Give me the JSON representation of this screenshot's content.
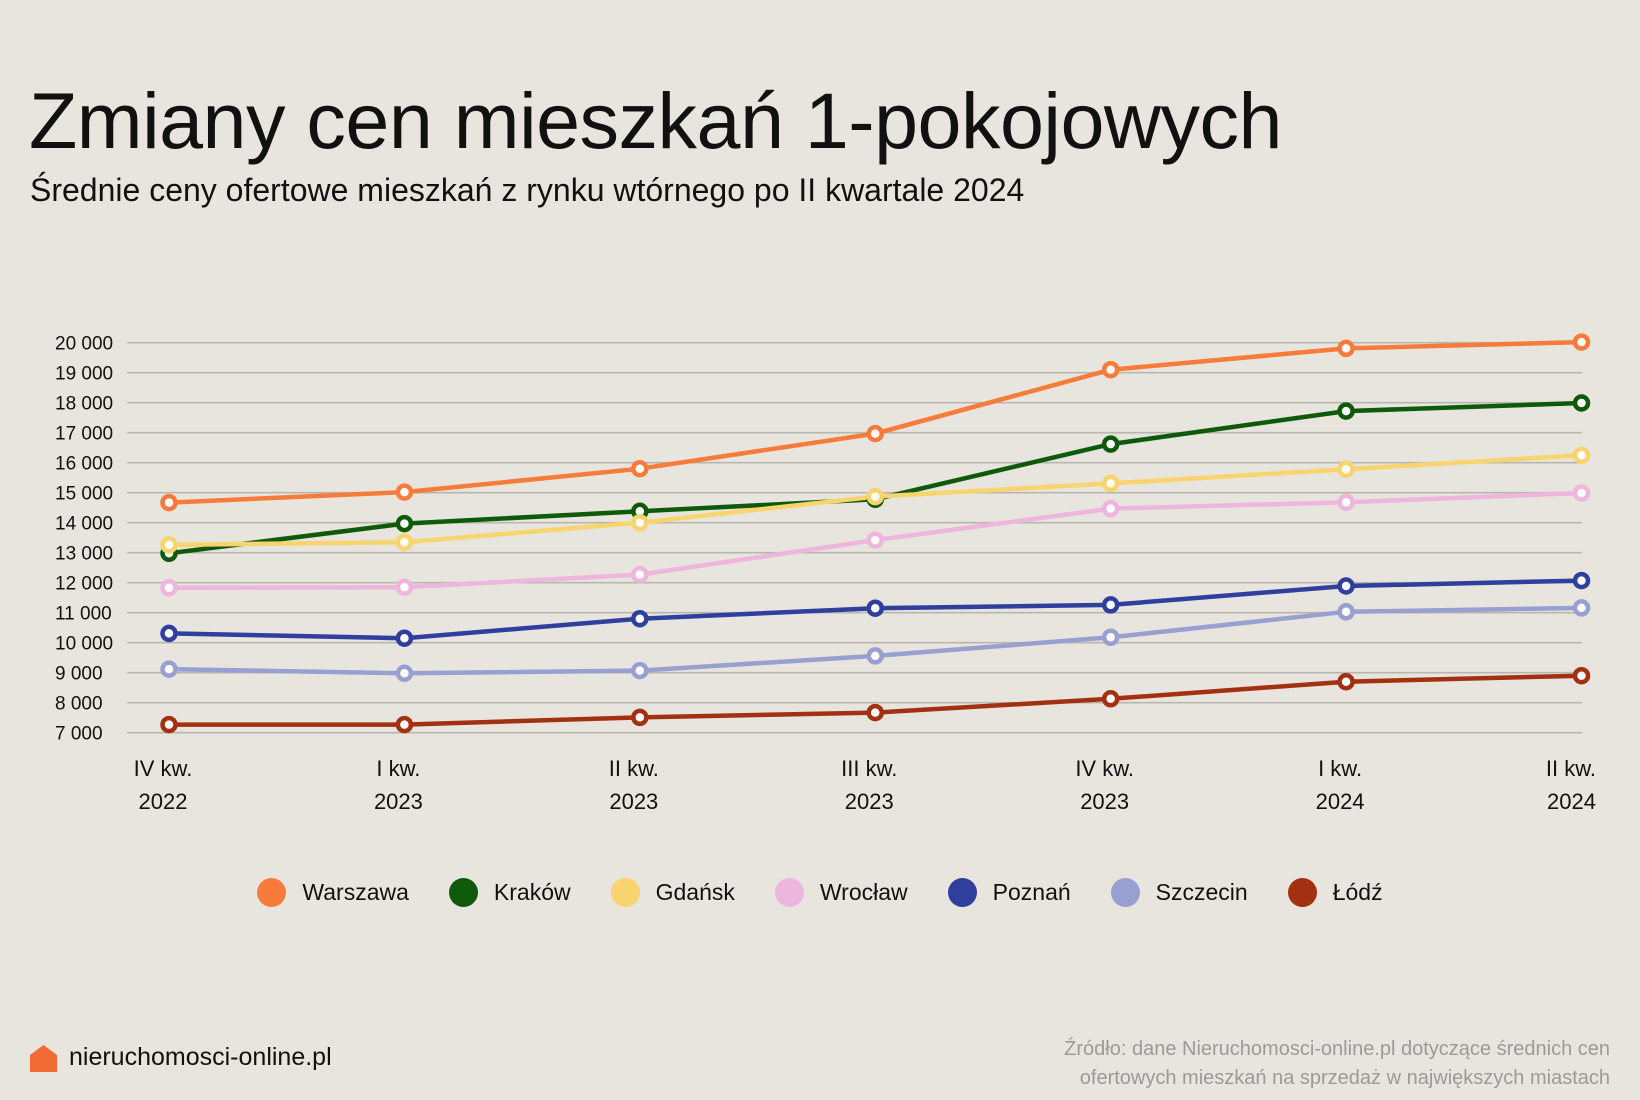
{
  "header": {
    "title": "Zmiany cen mieszkań 1-pokojowych",
    "subtitle": "Średnie ceny ofertowe mieszkań z rynku wtórnego po II kwartale 2024"
  },
  "chart_data": {
    "type": "line",
    "title": "Zmiany cen mieszkań 1-pokojowych",
    "subtitle": "Średnie ceny ofertowe mieszkań z rynku wtórnego po II kwartale 2024",
    "xlabel": "",
    "ylabel": "",
    "categories": [
      [
        "IV kw.",
        "2022"
      ],
      [
        "I kw.",
        "2023"
      ],
      [
        "II kw.",
        "2023"
      ],
      [
        "III kw.",
        "2023"
      ],
      [
        "IV kw.",
        "2023"
      ],
      [
        "I kw.",
        "2024"
      ],
      [
        "II kw.",
        "2024"
      ]
    ],
    "ylim": [
      7000,
      20000
    ],
    "yticks": [
      20000,
      19000,
      18000,
      17000,
      16000,
      15000,
      14000,
      13000,
      12000,
      11000,
      10000,
      9000,
      8000,
      7000
    ],
    "ytick_labels": [
      "20 000",
      "19 000",
      "18 000",
      "17 000",
      "16 000",
      "15 000",
      "14 000",
      "13 000",
      "12 000",
      "11 000",
      "10 000",
      "9 000",
      "8 000",
      "7 000"
    ],
    "grid": "horizontal",
    "legend_position": "bottom-center",
    "series": [
      {
        "name": "Warszawa",
        "color": "#F77B3A",
        "values": [
          14670,
          15020,
          15800,
          16970,
          19100,
          19810,
          20020
        ]
      },
      {
        "name": "Kraków",
        "color": "#0E5A0A",
        "values": [
          12980,
          13970,
          14380,
          14780,
          16620,
          17720,
          17990
        ]
      },
      {
        "name": "Gdańsk",
        "color": "#F8D46E",
        "values": [
          13260,
          13350,
          14000,
          14870,
          15310,
          15780,
          16250
        ]
      },
      {
        "name": "Wrocław",
        "color": "#EEB6DC",
        "values": [
          11830,
          11850,
          12270,
          13420,
          14470,
          14680,
          14990
        ]
      },
      {
        "name": "Poznań",
        "color": "#2E3F9E",
        "values": [
          10310,
          10150,
          10800,
          11150,
          11260,
          11890,
          12070
        ]
      },
      {
        "name": "Szczecin",
        "color": "#97A0D0",
        "values": [
          9120,
          8980,
          9070,
          9560,
          10180,
          11030,
          11160
        ]
      },
      {
        "name": "Łódź",
        "color": "#A33011",
        "values": [
          7270,
          7270,
          7510,
          7670,
          8130,
          8700,
          8900
        ]
      }
    ]
  },
  "footer": {
    "brand": "nieruchomosci-online.pl",
    "brand_icon": "house-icon",
    "brand_color": "#F26B35",
    "source_line1": "Źródło: dane Nieruchomosci-online.pl dotyczące średnich cen",
    "source_line2": "ofertowych mieszkań na sprzedaż w największych miastach"
  }
}
